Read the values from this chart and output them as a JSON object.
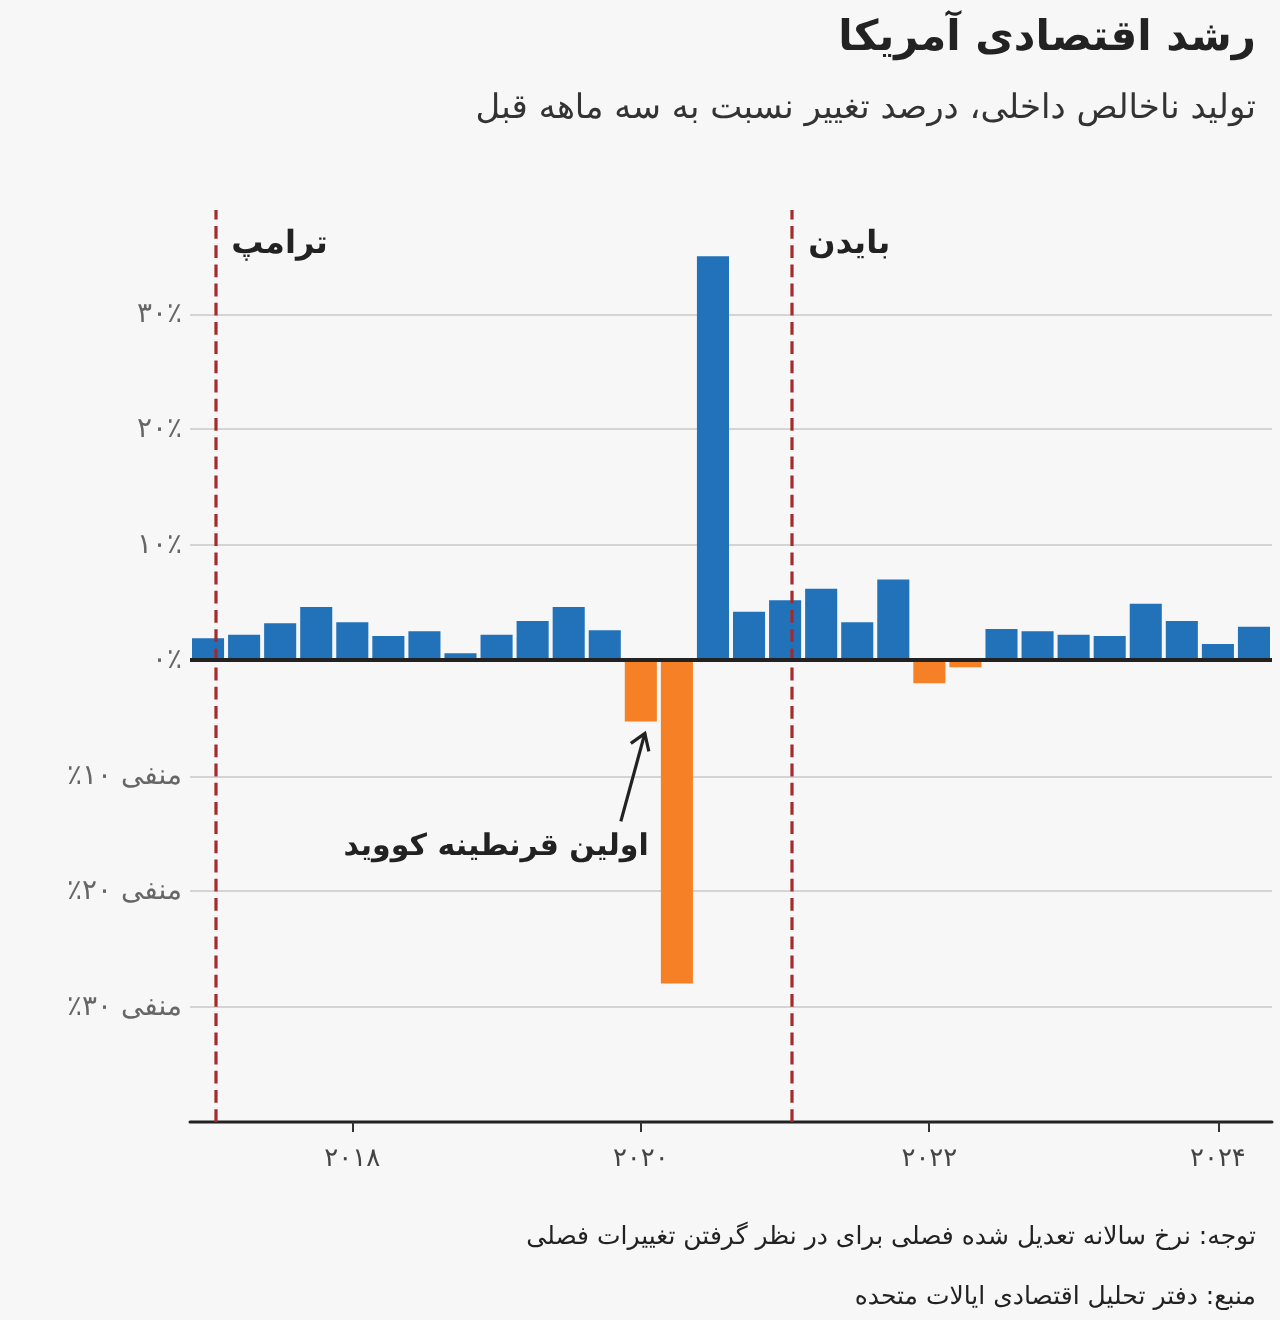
{
  "chart_data": {
    "type": "bar",
    "title": "رشد اقتصادی آمریکا",
    "subtitle": "تولید ناخالص داخلی، درصد تغییر نسبت به سه ماهه قبل",
    "x": [
      2017,
      2017.25,
      2017.5,
      2017.75,
      2018,
      2018.25,
      2018.5,
      2018.75,
      2019,
      2019.25,
      2019.5,
      2019.75,
      2020,
      2020.25,
      2020.5,
      2020.75,
      2021,
      2021.25,
      2021.5,
      2021.75,
      2022,
      2022.25,
      2022.5,
      2022.75,
      2023,
      2023.25,
      2023.5,
      2023.75,
      2024,
      2024.25
    ],
    "values": [
      1.9,
      2.2,
      3.2,
      4.6,
      3.3,
      2.1,
      2.5,
      0.6,
      2.2,
      3.4,
      4.6,
      2.6,
      -5.3,
      -28.0,
      35.0,
      4.2,
      5.2,
      6.2,
      3.3,
      7.0,
      -2.0,
      -0.6,
      2.7,
      2.5,
      2.2,
      2.1,
      4.9,
      3.4,
      1.4,
      2.9
    ],
    "colors": [
      "#2272b9",
      "#2272b9",
      "#2272b9",
      "#2272b9",
      "#2272b9",
      "#2272b9",
      "#2272b9",
      "#2272b9",
      "#2272b9",
      "#2272b9",
      "#2272b9",
      "#2272b9",
      "#f58025",
      "#f58025",
      "#2272b9",
      "#2272b9",
      "#2272b9",
      "#2272b9",
      "#2272b9",
      "#2272b9",
      "#f58025",
      "#f58025",
      "#2272b9",
      "#2272b9",
      "#2272b9",
      "#2272b9",
      "#2272b9",
      "#2272b9",
      "#2272b9",
      "#2272b9"
    ],
    "xlim": [
      2016.875,
      2024.375
    ],
    "xticks": [
      {
        "value": 2018,
        "label": "۲۰۱۸"
      },
      {
        "value": 2020,
        "label": "۲۰۲۰"
      },
      {
        "value": 2022,
        "label": "۲۰۲۲"
      },
      {
        "value": 2024,
        "label": "۲۰۲۴"
      }
    ],
    "ylim": [
      -40,
      39
    ],
    "yticks": [
      {
        "value": -30,
        "label": "منفی ۳۰٪"
      },
      {
        "value": -20,
        "label": "منفی ۲۰٪"
      },
      {
        "value": -10,
        "label": "منفی ۱۰٪"
      },
      {
        "value": 0,
        "label": "۰٪"
      },
      {
        "value": 10,
        "label": "۱۰٪"
      },
      {
        "value": 20,
        "label": "۲۰٪"
      },
      {
        "value": 30,
        "label": "۳۰٪"
      }
    ],
    "grid": "y",
    "ref_lines": [
      {
        "axis": "x",
        "value": 2017.05,
        "label": "ترامپ",
        "color": "#a52a2a",
        "line_style": "dashed"
      },
      {
        "axis": "x",
        "value": 2021.05,
        "label": "بایدن",
        "color": "#a52a2a",
        "line_style": "dashed"
      },
      {
        "axis": "y",
        "value": 0,
        "label": null,
        "color": "#222222",
        "line_style": "solid"
      }
    ],
    "annotations": [
      {
        "text": "اولین قرنطینه کووید",
        "x": 2020,
        "y": -5.3
      },
      "توجه: نرخ سالانه تعدیل شده فصلی  برای در نظر گرفتن تغییرات فصلی",
      "منبع: دفتر تحلیل اقتصادی ایالات متحده"
    ]
  }
}
